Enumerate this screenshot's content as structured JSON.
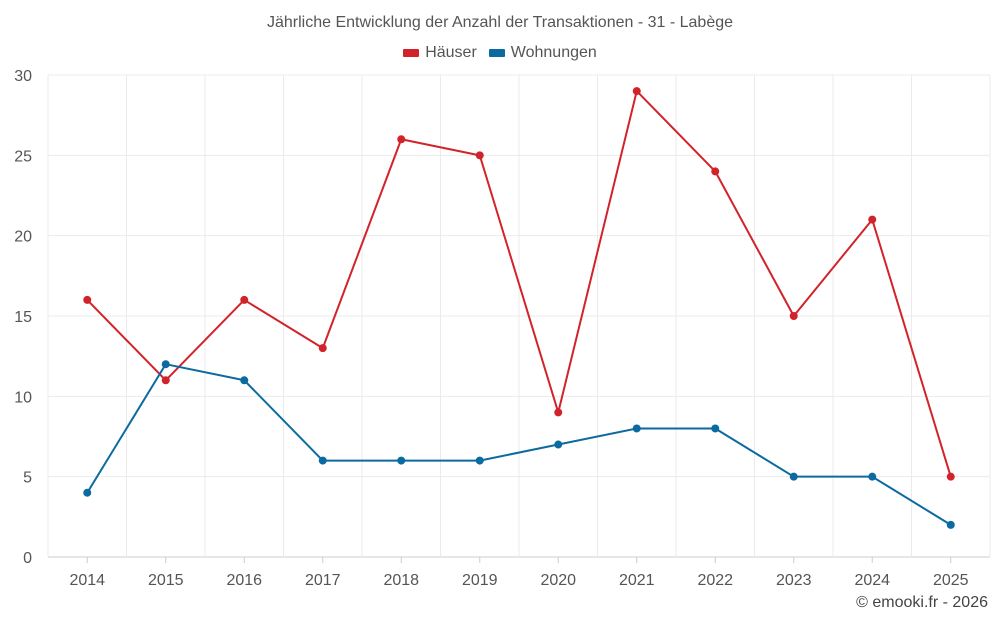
{
  "chart_data": {
    "type": "line",
    "title": "Jährliche Entwicklung der Anzahl der Transaktionen - 31 - Labège",
    "categories": [
      "2014",
      "2015",
      "2016",
      "2017",
      "2018",
      "2019",
      "2020",
      "2021",
      "2022",
      "2023",
      "2024",
      "2025"
    ],
    "series": [
      {
        "name": "Häuser",
        "color": "#d3232a",
        "values": [
          16,
          11,
          16,
          13,
          26,
          25,
          9,
          29,
          24,
          15,
          21,
          5
        ]
      },
      {
        "name": "Wohnungen",
        "color": "#0b6aa0",
        "values": [
          4,
          12,
          11,
          6,
          6,
          6,
          7,
          8,
          8,
          5,
          5,
          2
        ]
      }
    ],
    "ylim": [
      0,
      30
    ],
    "yticks": [
      0,
      5,
      10,
      15,
      20,
      25,
      30
    ],
    "xlabel": "",
    "ylabel": "",
    "grid": true,
    "legend": "top-center"
  },
  "credit": "© emooki.fr - 2026"
}
